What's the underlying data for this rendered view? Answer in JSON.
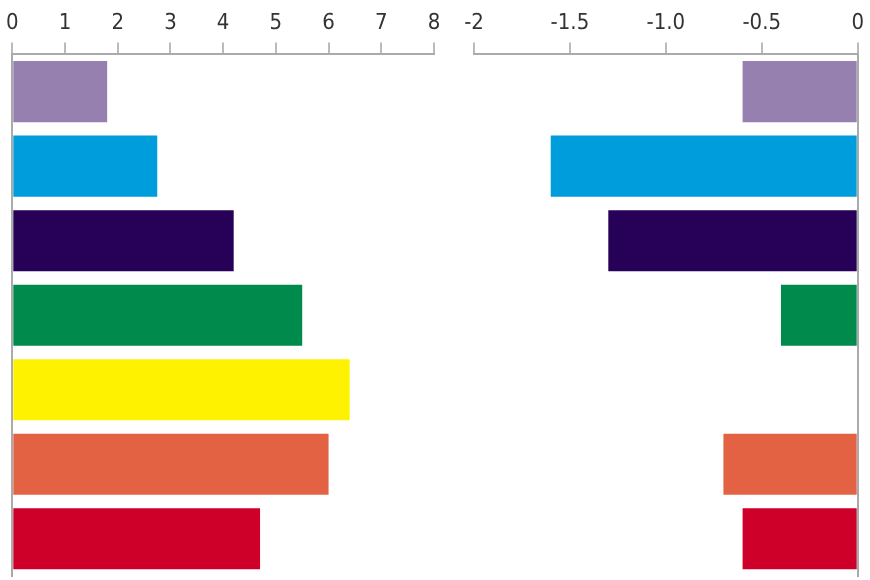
{
  "chart_data": [
    {
      "type": "bar",
      "orientation": "horizontal",
      "categories": [
        null,
        null,
        null,
        null,
        null,
        null,
        null
      ],
      "values": [
        1.8,
        2.75,
        4.2,
        5.5,
        6.4,
        6.0,
        4.7
      ],
      "colors": [
        "#9580b0",
        "#009ddc",
        "#270058",
        "#008a4b",
        "#fff200",
        "#e46244",
        "#ce0029"
      ],
      "xlim": [
        0,
        8
      ],
      "xticks": [
        0,
        1,
        2,
        3,
        4,
        5,
        6,
        7,
        8
      ],
      "grid": false
    },
    {
      "type": "bar",
      "orientation": "horizontal",
      "categories": [
        null,
        null,
        null,
        null,
        null,
        null,
        null
      ],
      "values": [
        -0.6,
        -1.6,
        -1.3,
        -0.4,
        null,
        -0.7,
        -0.6
      ],
      "colors": [
        "#9580b0",
        "#009ddc",
        "#270058",
        "#008a4b",
        "#fff200",
        "#e46244",
        "#ce0029"
      ],
      "xlim": [
        -2,
        0
      ],
      "xticks": [
        -2,
        -1.5,
        {
          "value": -1,
          "label": "-1.0"
        },
        -0.5,
        0
      ],
      "grid": false
    }
  ]
}
